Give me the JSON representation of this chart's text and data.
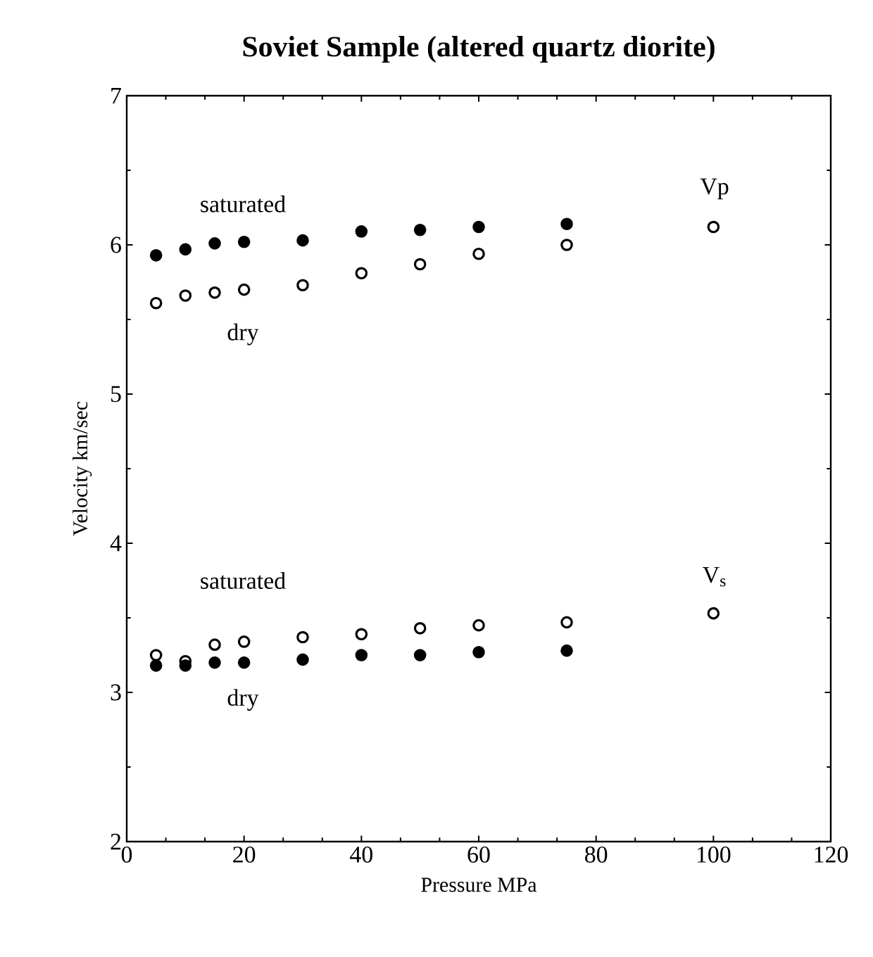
{
  "chart_data": {
    "type": "scatter",
    "title": "Soviet Sample (altered quartz diorite)",
    "xlabel": "Pressure MPa",
    "ylabel": "Velocity km/sec",
    "xlim": [
      0,
      120
    ],
    "xticks": [
      0,
      20,
      40,
      60,
      80,
      100,
      120
    ],
    "ylim": [
      2,
      7
    ],
    "yticks": [
      2,
      3,
      4,
      5,
      6,
      7
    ],
    "grid": false,
    "series": [
      {
        "color": "#000000",
        "marker": "circle",
        "x": [
          5,
          10,
          15,
          20,
          30,
          40,
          50,
          60,
          75
        ],
        "values": [
          5.93,
          5.97,
          6.01,
          6.02,
          6.03,
          6.09,
          6.1,
          6.12,
          6.14
        ]
      },
      {
        "color": "#000000",
        "marker": "open circle",
        "x": [
          5,
          10,
          15,
          20,
          30,
          40,
          50,
          60,
          75,
          100
        ],
        "values": [
          5.61,
          5.66,
          5.68,
          5.7,
          5.73,
          5.81,
          5.87,
          5.94,
          6.0,
          6.12
        ]
      },
      {
        "color": "#000000",
        "marker": "open circle",
        "x": [
          5,
          10,
          15,
          20,
          30,
          40,
          50,
          60,
          75,
          100
        ],
        "values": [
          3.25,
          3.21,
          3.32,
          3.34,
          3.37,
          3.39,
          3.43,
          3.45,
          3.47,
          3.53
        ]
      },
      {
        "color": "#000000",
        "marker": "circle",
        "x": [
          5,
          10,
          15,
          20,
          30,
          40,
          50,
          60,
          75
        ],
        "values": [
          3.18,
          3.18,
          3.2,
          3.2,
          3.22,
          3.25,
          3.25,
          3.27,
          3.28
        ]
      }
    ],
    "annotations": [
      "saturated",
      "dry",
      "Vp",
      "saturated",
      "dry",
      "V$_{s}$"
    ]
  }
}
